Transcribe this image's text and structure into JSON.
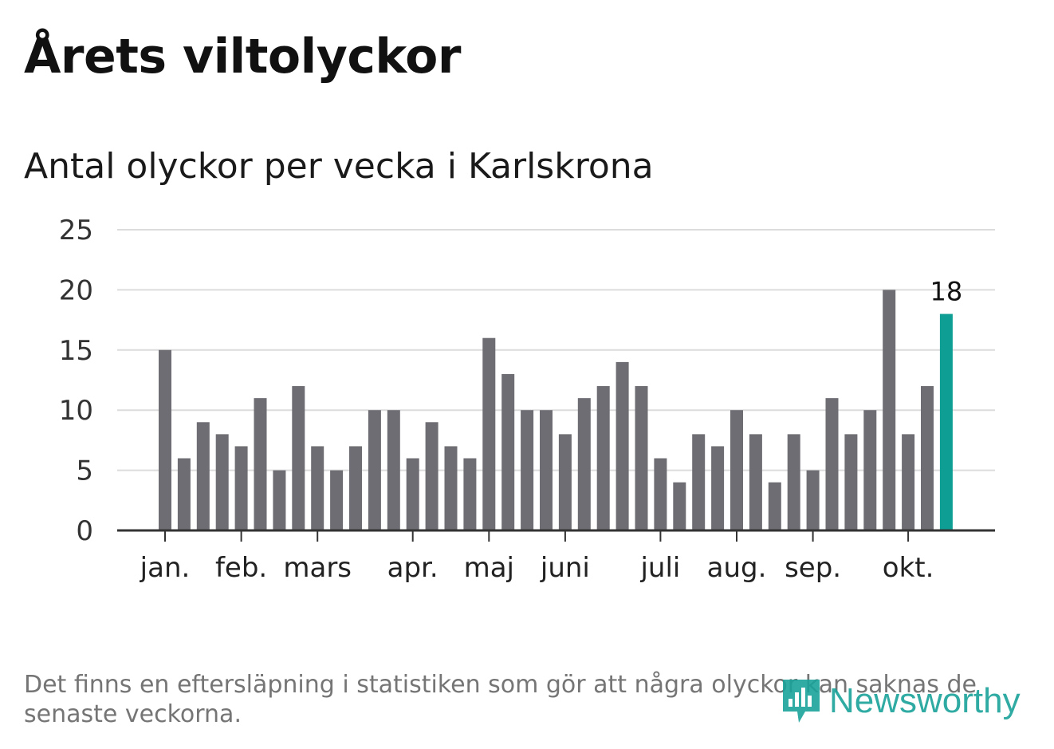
{
  "title": "Årets viltolyckor",
  "subtitle": "Antal olyckor per vecka i Karlskrona",
  "footnote": "Det finns en eftersläpning i statistiken som gör att några olyckor kan saknas de senaste veckorna.",
  "logo": {
    "text": "Newsworthy",
    "icon": "newsworthy-chart-bubble-icon"
  },
  "colors": {
    "bar": "#6e6d73",
    "highlight": "#0f9e93",
    "grid": "#dcdcdc",
    "axis": "#333333"
  },
  "chart_data": {
    "type": "bar",
    "title": "",
    "xlabel": "",
    "ylabel": "",
    "ylim": [
      0,
      25
    ],
    "yticks": [
      0,
      5,
      10,
      15,
      20,
      25
    ],
    "grid": true,
    "values": [
      15,
      6,
      9,
      8,
      7,
      11,
      5,
      12,
      7,
      5,
      7,
      10,
      10,
      6,
      9,
      7,
      6,
      16,
      13,
      10,
      10,
      8,
      11,
      12,
      14,
      12,
      6,
      4,
      8,
      7,
      10,
      8,
      4,
      8,
      5,
      11,
      8,
      10,
      20,
      8,
      12,
      18
    ],
    "highlight_index": 41,
    "highlight_label": "18",
    "month_labels": [
      {
        "label": "jan.",
        "bar_index": 0
      },
      {
        "label": "feb.",
        "bar_index": 4
      },
      {
        "label": "mars",
        "bar_index": 8
      },
      {
        "label": "apr.",
        "bar_index": 13
      },
      {
        "label": "maj",
        "bar_index": 17
      },
      {
        "label": "juni",
        "bar_index": 21
      },
      {
        "label": "juli",
        "bar_index": 26
      },
      {
        "label": "aug.",
        "bar_index": 30
      },
      {
        "label": "sep.",
        "bar_index": 34
      },
      {
        "label": "okt.",
        "bar_index": 39
      }
    ]
  }
}
